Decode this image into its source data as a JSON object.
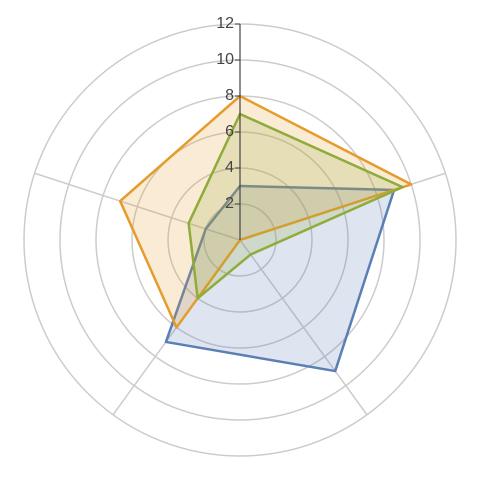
{
  "chart_data": {
    "type": "radar",
    "rlim": [
      0,
      12
    ],
    "rticks": [
      2,
      4,
      6,
      8,
      10,
      12
    ],
    "grid": true,
    "series": [
      {
        "color": "#5b7fb5",
        "values": [
          3,
          9,
          9,
          7,
          2
        ]
      },
      {
        "color": "#e59c2c",
        "values": [
          8,
          10,
          0,
          6,
          7
        ]
      },
      {
        "color": "#8fac3a",
        "values": [
          7,
          9.5,
          1,
          4,
          3
        ]
      }
    ]
  }
}
